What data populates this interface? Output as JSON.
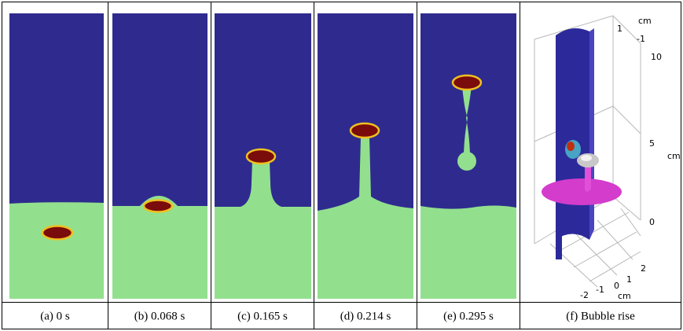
{
  "panels": [
    {
      "caption": "(a) 0 s"
    },
    {
      "caption": "(b) 0.068 s"
    },
    {
      "caption": "(c) 0.165 s"
    },
    {
      "caption": "(d) 0.214 s"
    },
    {
      "caption": "(e) 0.295 s"
    },
    {
      "caption": "(f) Bubble rise"
    }
  ],
  "axis_labels": [
    "cm",
    "1",
    "-1",
    "10",
    "5",
    "cm",
    "0",
    "2",
    "1",
    "0",
    "-1",
    "-2",
    "cm"
  ]
}
